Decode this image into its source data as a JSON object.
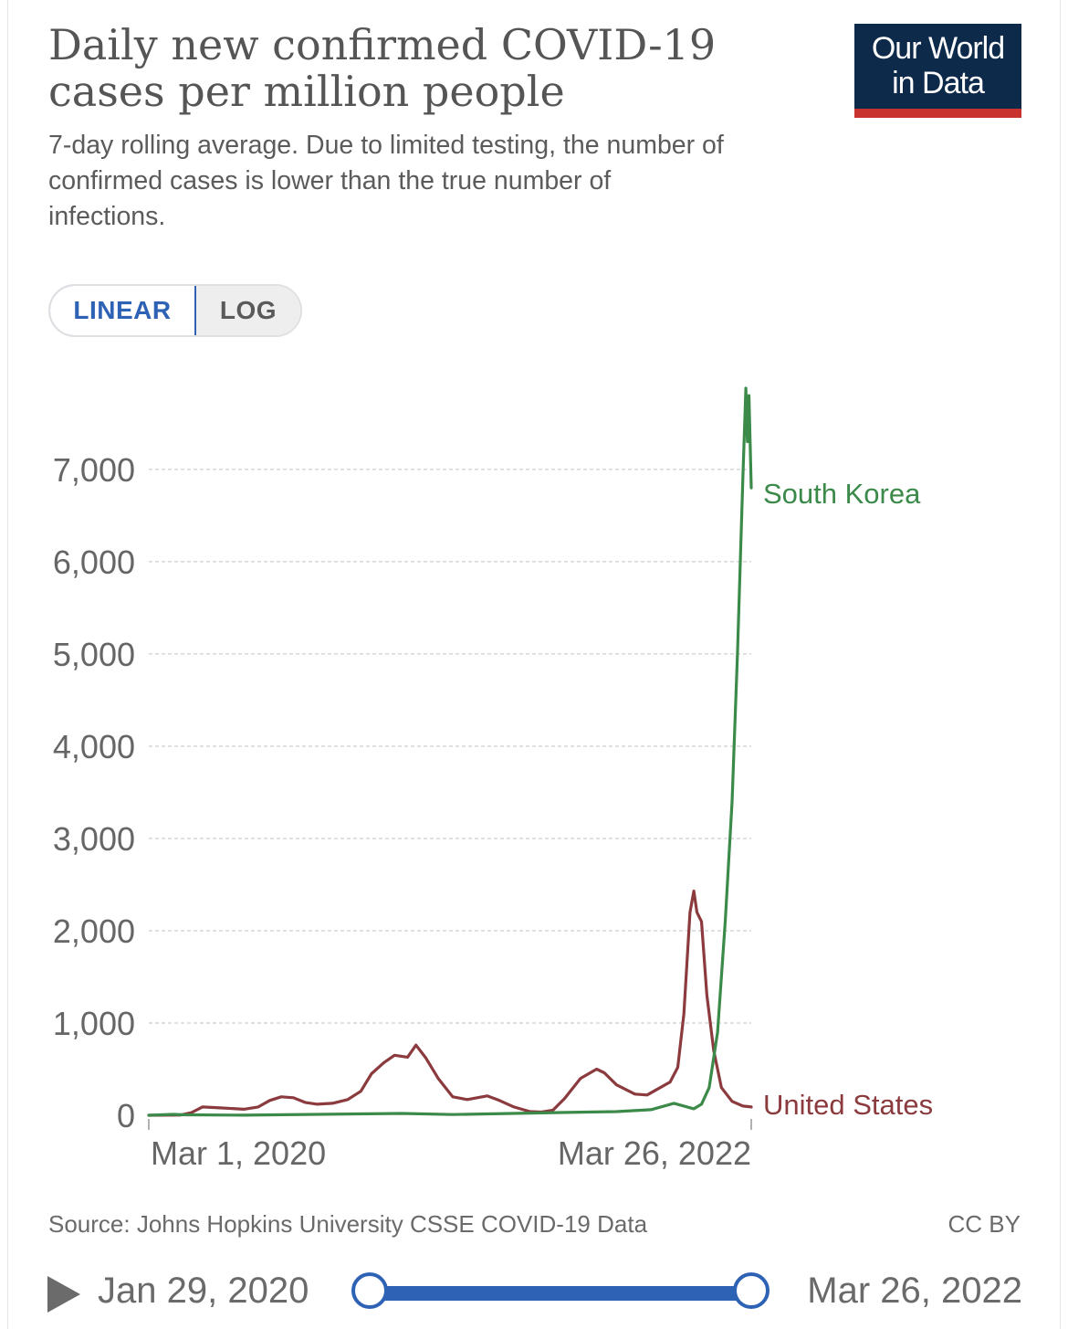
{
  "header": {
    "title": "Daily new confirmed COVID-19 cases per million people",
    "subtitle": "7-day rolling average. Due to limited testing, the number of confirmed cases is lower than the true number of infections.",
    "logo_line1": "Our World",
    "logo_line2": "in Data"
  },
  "scale_toggle": {
    "linear_label": "LINEAR",
    "log_label": "LOG",
    "selected": "LINEAR"
  },
  "colors": {
    "us": "#8b3a3e",
    "korea": "#3b8a4a",
    "accent": "#2e62b5",
    "logo_bg": "#0e2a4b",
    "logo_stripe": "#c8322f"
  },
  "chart_data": {
    "type": "line",
    "title": "Daily new confirmed COVID-19 cases per million people",
    "xlabel": "",
    "ylabel": "",
    "x_range": [
      "2020-01-29",
      "2022-03-26"
    ],
    "ylim": [
      0,
      7900
    ],
    "y_ticks": [
      0,
      1000,
      2000,
      3000,
      4000,
      5000,
      6000,
      7000
    ],
    "y_tick_labels": [
      "0",
      "1,000",
      "2,000",
      "3,000",
      "4,000",
      "5,000",
      "6,000",
      "7,000"
    ],
    "x_tick_labels": [
      "Mar 1, 2020",
      "Mar 26, 2022"
    ],
    "grid": true,
    "legend": "inline labels at line ends",
    "series": [
      {
        "name": "United States",
        "points": [
          [
            "2020-01-29",
            0
          ],
          [
            "2020-03-10",
            2
          ],
          [
            "2020-03-25",
            30
          ],
          [
            "2020-04-08",
            90
          ],
          [
            "2020-05-01",
            80
          ],
          [
            "2020-06-01",
            65
          ],
          [
            "2020-06-20",
            90
          ],
          [
            "2020-07-05",
            160
          ],
          [
            "2020-07-20",
            200
          ],
          [
            "2020-08-05",
            190
          ],
          [
            "2020-08-20",
            140
          ],
          [
            "2020-09-05",
            120
          ],
          [
            "2020-09-25",
            130
          ],
          [
            "2020-10-15",
            170
          ],
          [
            "2020-11-01",
            260
          ],
          [
            "2020-11-15",
            450
          ],
          [
            "2020-12-01",
            570
          ],
          [
            "2020-12-15",
            650
          ],
          [
            "2021-01-01",
            630
          ],
          [
            "2021-01-12",
            760
          ],
          [
            "2021-01-25",
            620
          ],
          [
            "2021-02-10",
            400
          ],
          [
            "2021-03-01",
            200
          ],
          [
            "2021-03-20",
            170
          ],
          [
            "2021-04-15",
            210
          ],
          [
            "2021-05-01",
            160
          ],
          [
            "2021-05-20",
            90
          ],
          [
            "2021-06-10",
            40
          ],
          [
            "2021-06-25",
            35
          ],
          [
            "2021-07-10",
            55
          ],
          [
            "2021-07-25",
            180
          ],
          [
            "2021-08-15",
            400
          ],
          [
            "2021-09-05",
            500
          ],
          [
            "2021-09-15",
            460
          ],
          [
            "2021-10-01",
            330
          ],
          [
            "2021-10-25",
            230
          ],
          [
            "2021-11-10",
            220
          ],
          [
            "2021-11-25",
            290
          ],
          [
            "2021-12-10",
            360
          ],
          [
            "2021-12-20",
            520
          ],
          [
            "2021-12-28",
            1100
          ],
          [
            "2022-01-05",
            2200
          ],
          [
            "2022-01-10",
            2430
          ],
          [
            "2022-01-14",
            2200
          ],
          [
            "2022-01-20",
            2100
          ],
          [
            "2022-01-27",
            1300
          ],
          [
            "2022-02-05",
            700
          ],
          [
            "2022-02-15",
            300
          ],
          [
            "2022-03-01",
            150
          ],
          [
            "2022-03-15",
            100
          ],
          [
            "2022-03-26",
            90
          ]
        ]
      },
      {
        "name": "South Korea",
        "points": [
          [
            "2020-01-29",
            0
          ],
          [
            "2020-03-01",
            10
          ],
          [
            "2020-03-15",
            5
          ],
          [
            "2020-06-01",
            1
          ],
          [
            "2020-12-25",
            20
          ],
          [
            "2021-03-01",
            8
          ],
          [
            "2021-07-20",
            30
          ],
          [
            "2021-10-01",
            40
          ],
          [
            "2021-11-15",
            60
          ],
          [
            "2021-12-15",
            130
          ],
          [
            "2021-12-28",
            100
          ],
          [
            "2022-01-10",
            70
          ],
          [
            "2022-01-20",
            120
          ],
          [
            "2022-01-30",
            300
          ],
          [
            "2022-02-10",
            900
          ],
          [
            "2022-02-20",
            2100
          ],
          [
            "2022-03-01",
            3400
          ],
          [
            "2022-03-08",
            5000
          ],
          [
            "2022-03-15",
            6900
          ],
          [
            "2022-03-19",
            7880
          ],
          [
            "2022-03-21",
            7300
          ],
          [
            "2022-03-23",
            7800
          ],
          [
            "2022-03-26",
            6800
          ]
        ]
      }
    ]
  },
  "footer": {
    "source": "Source: Johns Hopkins University CSSE COVID-19 Data",
    "license": "CC BY"
  },
  "timeline": {
    "start_label": "Jan 29, 2020",
    "end_label": "Mar 26, 2022",
    "range_fraction": [
      0,
      1
    ]
  }
}
